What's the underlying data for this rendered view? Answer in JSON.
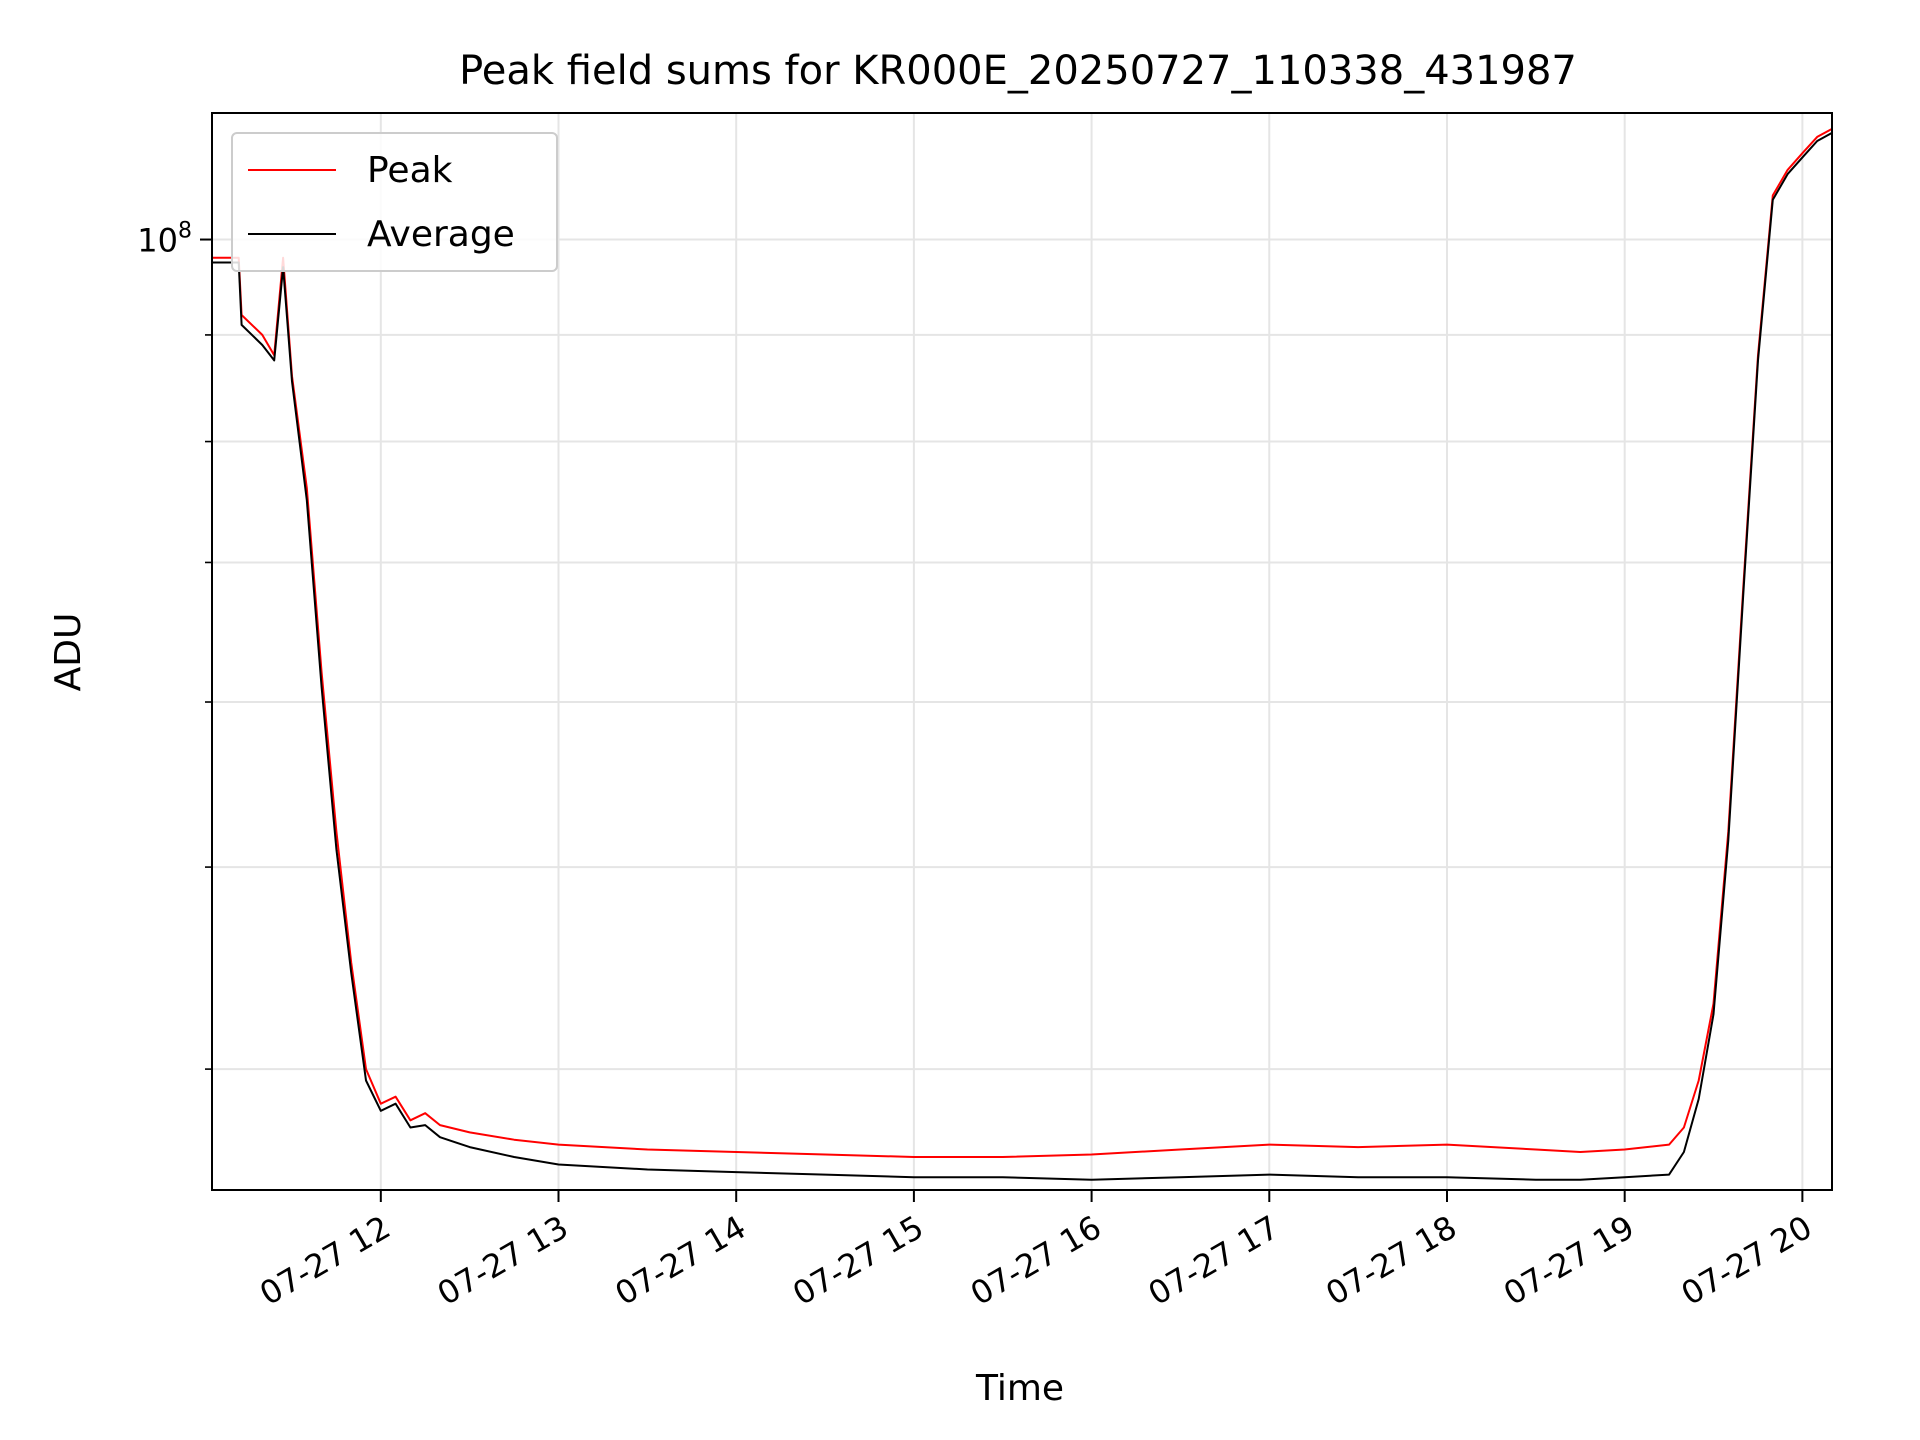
{
  "chart_data": {
    "type": "line",
    "title": "Peak field sums for KR000E_20250727_110338_431987",
    "xlabel": "Time",
    "ylabel": "ADU",
    "x_unit": "datetime",
    "xlim": [
      "2025-07-27 11:03",
      "2025-07-27 20:10"
    ],
    "ylim": [
      35000000.0,
      115000000.0
    ],
    "yscale": "log",
    "grid": true,
    "legend_placement": "top-left",
    "x_tick_labels": [
      "07-27 12",
      "07-27 13",
      "07-27 14",
      "07-27 15",
      "07-27 16",
      "07-27 17",
      "07-27 18",
      "07-27 19",
      "07-27 20"
    ],
    "x_ticks": [
      "2025-07-27 12:00",
      "2025-07-27 13:00",
      "2025-07-27 14:00",
      "2025-07-27 15:00",
      "2025-07-27 16:00",
      "2025-07-27 17:00",
      "2025-07-27 18:00",
      "2025-07-27 19:00",
      "2025-07-27 20:00"
    ],
    "y_major_ticks": [
      {
        "value": 100000000,
        "base": "10",
        "exp": "8"
      }
    ],
    "y_minor_ticks": [
      40000000,
      50000000,
      60000000,
      70000000,
      80000000,
      90000000
    ],
    "series": [
      {
        "name": "Peak",
        "color": "#ff0000",
        "x": [
          "2025-07-27 11:03",
          "2025-07-27 11:12",
          "2025-07-27 11:13",
          "2025-07-27 11:20",
          "2025-07-27 11:24",
          "2025-07-27 11:27",
          "2025-07-27 11:30",
          "2025-07-27 11:35",
          "2025-07-27 11:40",
          "2025-07-27 11:45",
          "2025-07-27 11:50",
          "2025-07-27 11:55",
          "2025-07-27 12:00",
          "2025-07-27 12:05",
          "2025-07-27 12:10",
          "2025-07-27 12:15",
          "2025-07-27 12:20",
          "2025-07-27 12:30",
          "2025-07-27 12:45",
          "2025-07-27 13:00",
          "2025-07-27 13:30",
          "2025-07-27 14:00",
          "2025-07-27 14:30",
          "2025-07-27 15:00",
          "2025-07-27 15:30",
          "2025-07-27 16:00",
          "2025-07-27 16:30",
          "2025-07-27 17:00",
          "2025-07-27 17:30",
          "2025-07-27 18:00",
          "2025-07-27 18:30",
          "2025-07-27 18:45",
          "2025-07-27 19:00",
          "2025-07-27 19:15",
          "2025-07-27 19:20",
          "2025-07-27 19:25",
          "2025-07-27 19:30",
          "2025-07-27 19:35",
          "2025-07-27 19:40",
          "2025-07-27 19:45",
          "2025-07-27 19:50",
          "2025-07-27 19:55",
          "2025-07-27 20:00",
          "2025-07-27 20:05",
          "2025-07-27 20:10"
        ],
        "values": [
          98000000,
          98000000,
          92000000,
          90000000,
          88000000,
          98000000,
          86000000,
          76000000,
          62000000,
          52000000,
          45000000,
          40000000,
          38500000,
          38800000,
          37800000,
          38100000,
          37600000,
          37300000,
          37000000,
          36800000,
          36600000,
          36500000,
          36400000,
          36300000,
          36300000,
          36400000,
          36600000,
          36800000,
          36700000,
          36800000,
          36600000,
          36500000,
          36600000,
          36800000,
          37500000,
          39500000,
          43000000,
          52000000,
          68000000,
          88000000,
          105000000,
          108000000,
          110000000,
          112000000,
          113000000
        ]
      },
      {
        "name": "Average",
        "color": "#000000",
        "x": [
          "2025-07-27 11:03",
          "2025-07-27 11:12",
          "2025-07-27 11:13",
          "2025-07-27 11:20",
          "2025-07-27 11:24",
          "2025-07-27 11:27",
          "2025-07-27 11:30",
          "2025-07-27 11:35",
          "2025-07-27 11:40",
          "2025-07-27 11:45",
          "2025-07-27 11:50",
          "2025-07-27 11:55",
          "2025-07-27 12:00",
          "2025-07-27 12:05",
          "2025-07-27 12:10",
          "2025-07-27 12:15",
          "2025-07-27 12:20",
          "2025-07-27 12:30",
          "2025-07-27 12:45",
          "2025-07-27 13:00",
          "2025-07-27 13:30",
          "2025-07-27 14:00",
          "2025-07-27 14:30",
          "2025-07-27 15:00",
          "2025-07-27 15:30",
          "2025-07-27 16:00",
          "2025-07-27 16:30",
          "2025-07-27 17:00",
          "2025-07-27 17:30",
          "2025-07-27 18:00",
          "2025-07-27 18:30",
          "2025-07-27 18:45",
          "2025-07-27 19:00",
          "2025-07-27 19:15",
          "2025-07-27 19:20",
          "2025-07-27 19:25",
          "2025-07-27 19:30",
          "2025-07-27 19:35",
          "2025-07-27 19:40",
          "2025-07-27 19:45",
          "2025-07-27 19:50",
          "2025-07-27 19:55",
          "2025-07-27 20:00",
          "2025-07-27 20:05",
          "2025-07-27 20:10"
        ],
        "values": [
          97500000,
          97500000,
          91000000,
          89000000,
          87500000,
          97000000,
          85500000,
          75000000,
          61000000,
          51000000,
          44500000,
          39500000,
          38200000,
          38500000,
          37500000,
          37600000,
          37100000,
          36700000,
          36300000,
          36000000,
          35800000,
          35700000,
          35600000,
          35500000,
          35500000,
          35400000,
          35500000,
          35600000,
          35500000,
          35500000,
          35400000,
          35400000,
          35500000,
          35600000,
          36500000,
          38700000,
          42500000,
          51500000,
          67500000,
          87500000,
          104500000,
          107500000,
          109500000,
          111500000,
          112500000
        ]
      }
    ]
  }
}
